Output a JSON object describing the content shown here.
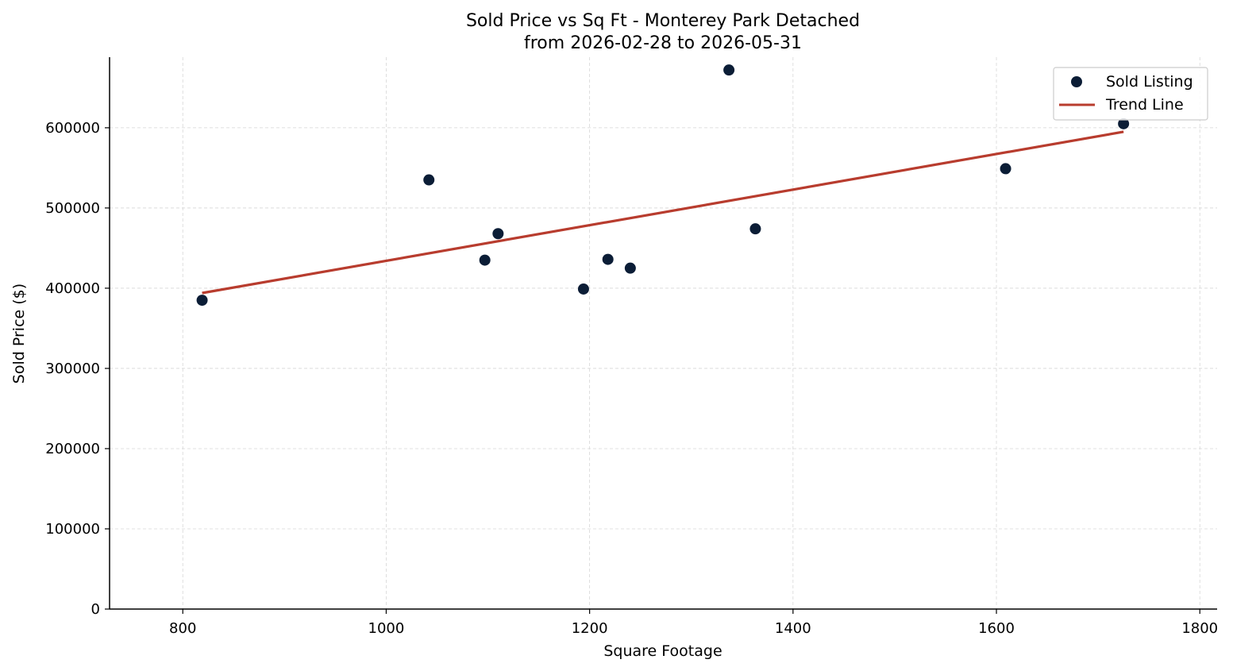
{
  "chart_data": {
    "type": "scatter",
    "title": "Sold Price vs Sq Ft - Monterey Park Detached",
    "subtitle": "from 2026-02-28 to 2026-05-31",
    "xlabel": "Square Footage",
    "ylabel": "Sold Price ($)",
    "xlim": [
      728,
      1817
    ],
    "ylim": [
      0,
      688000
    ],
    "xticks": [
      800,
      1000,
      1200,
      1400,
      1600,
      1800
    ],
    "yticks": [
      0,
      100000,
      200000,
      300000,
      400000,
      500000,
      600000
    ],
    "xtick_labels": [
      "800",
      "1000",
      "1200",
      "1400",
      "1600",
      "1800"
    ],
    "ytick_labels": [
      "0",
      "100000",
      "200000",
      "300000",
      "400000",
      "500000",
      "600000"
    ],
    "grid": true,
    "legend_position": "top-right",
    "series": [
      {
        "name": "Sold Listing",
        "kind": "scatter",
        "color": "#0b1d36",
        "points": [
          {
            "x": 819,
            "y": 385000
          },
          {
            "x": 1042,
            "y": 535000
          },
          {
            "x": 1097,
            "y": 435000
          },
          {
            "x": 1110,
            "y": 468000
          },
          {
            "x": 1194,
            "y": 399000
          },
          {
            "x": 1218,
            "y": 436000
          },
          {
            "x": 1240,
            "y": 425000
          },
          {
            "x": 1337,
            "y": 672000
          },
          {
            "x": 1363,
            "y": 474000
          },
          {
            "x": 1609,
            "y": 549000
          },
          {
            "x": 1725,
            "y": 605000
          }
        ]
      },
      {
        "name": "Trend Line",
        "kind": "line",
        "color": "#b83c2e",
        "points": [
          {
            "x": 819,
            "y": 394000
          },
          {
            "x": 1725,
            "y": 595000
          }
        ]
      }
    ]
  }
}
